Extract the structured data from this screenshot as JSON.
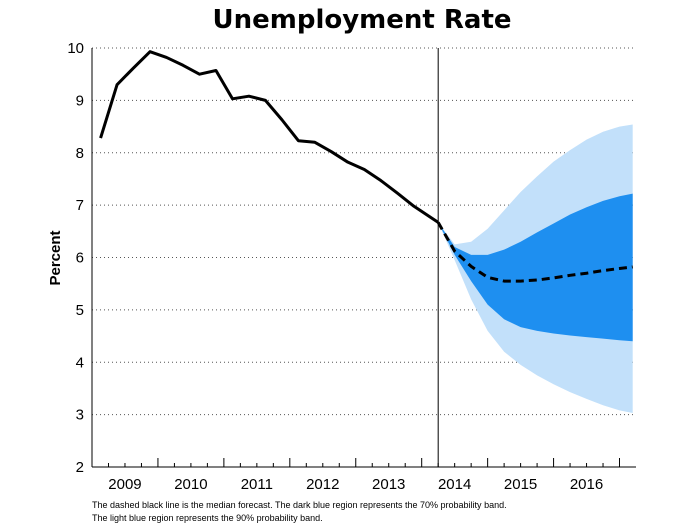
{
  "chart_data": {
    "type": "line",
    "title": "Unemployment Rate",
    "xlabel": "",
    "ylabel": "Percent",
    "ylim": [
      2,
      10
    ],
    "xlim": [
      2008.5,
      2016.75
    ],
    "yticks": [
      2,
      3,
      4,
      5,
      6,
      7,
      8,
      9,
      10
    ],
    "xticks": [
      "2009",
      "2010",
      "2011",
      "2012",
      "2013",
      "2014",
      "2015",
      "2016"
    ],
    "grid": "horizontal dotted",
    "forecast_start": 2013.75,
    "series": [
      {
        "style": "solid black",
        "x": [
          2008.63,
          2008.88,
          2009.13,
          2009.38,
          2009.63,
          2009.88,
          2010.13,
          2010.38,
          2010.63,
          2010.88,
          2011.13,
          2011.38,
          2011.63,
          2011.88,
          2012.13,
          2012.38,
          2012.63,
          2012.88,
          2013.13,
          2013.38,
          2013.63,
          2013.75
        ],
        "y": [
          8.28,
          9.3,
          9.62,
          9.93,
          9.82,
          9.67,
          9.5,
          9.57,
          9.03,
          9.08,
          9.0,
          8.63,
          8.23,
          8.2,
          8.02,
          7.82,
          7.68,
          7.47,
          7.23,
          6.98,
          6.77,
          6.67
        ]
      },
      {
        "style": "dashed black",
        "x": [
          2013.75,
          2014.0,
          2014.25,
          2014.5,
          2014.75,
          2015.0,
          2015.25,
          2015.5,
          2015.75,
          2016.0,
          2016.25,
          2016.5,
          2016.7
        ],
        "y": [
          6.67,
          6.12,
          5.83,
          5.62,
          5.55,
          5.55,
          5.57,
          5.61,
          5.66,
          5.7,
          5.75,
          5.79,
          5.82
        ]
      }
    ],
    "bands": [
      {
        "style": "light blue",
        "color": "#c2e0fa",
        "x": [
          2013.75,
          2014.0,
          2014.25,
          2014.5,
          2014.75,
          2015.0,
          2015.25,
          2015.5,
          2015.75,
          2016.0,
          2016.25,
          2016.5,
          2016.7
        ],
        "upper": [
          6.67,
          6.25,
          6.3,
          6.55,
          6.9,
          7.25,
          7.55,
          7.83,
          8.05,
          8.25,
          8.4,
          8.5,
          8.54
        ],
        "lower": [
          6.67,
          5.95,
          5.2,
          4.6,
          4.2,
          3.95,
          3.75,
          3.58,
          3.43,
          3.3,
          3.18,
          3.08,
          3.03
        ]
      },
      {
        "style": "dark blue",
        "color": "#1e8ff0",
        "x": [
          2013.75,
          2014.0,
          2014.25,
          2014.5,
          2014.75,
          2015.0,
          2015.25,
          2015.5,
          2015.75,
          2016.0,
          2016.25,
          2016.5,
          2016.7
        ],
        "upper": [
          6.67,
          6.2,
          6.05,
          6.05,
          6.15,
          6.3,
          6.48,
          6.65,
          6.82,
          6.96,
          7.08,
          7.17,
          7.22
        ],
        "lower": [
          6.67,
          6.05,
          5.55,
          5.1,
          4.82,
          4.67,
          4.6,
          4.55,
          4.51,
          4.48,
          4.45,
          4.42,
          4.4
        ]
      }
    ]
  },
  "caption": {
    "line1": "The dashed black line is the median forecast. The dark blue region represents the 70% probability band.",
    "line2": "The light blue region represents the 90% probability band."
  }
}
